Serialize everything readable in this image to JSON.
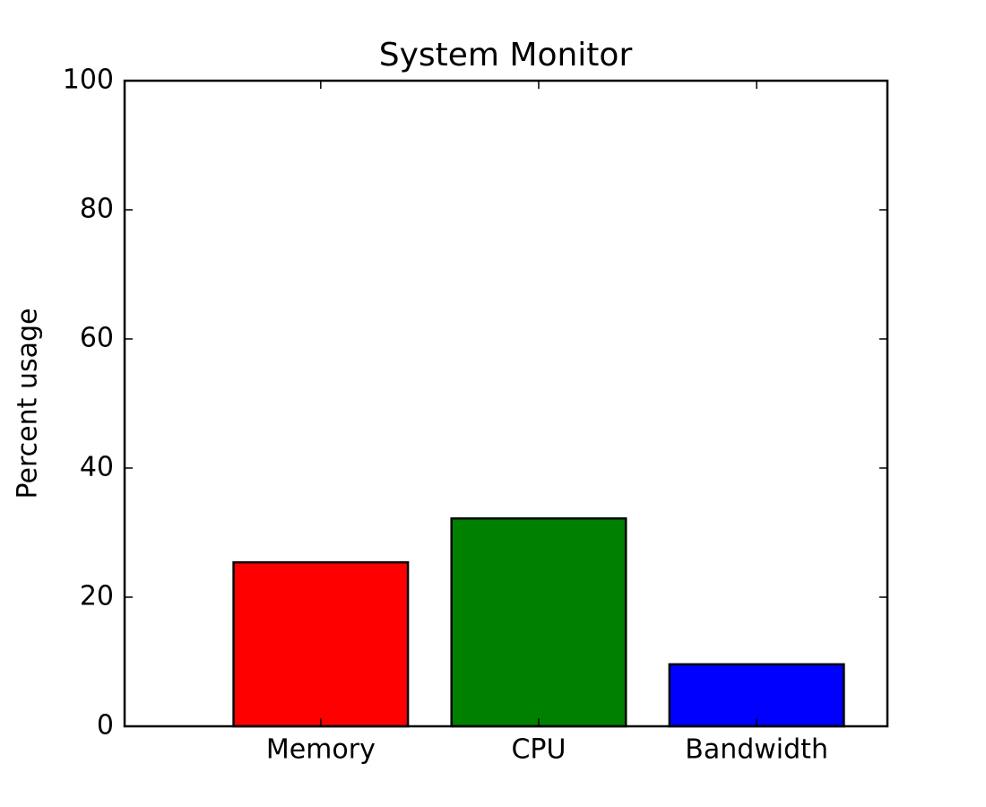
{
  "chart_data": {
    "type": "bar",
    "title": "System Monitor",
    "y_label": "Percent usage",
    "categories": [
      "Memory",
      "CPU",
      "Bandwidth"
    ],
    "values": [
      25.4,
      32.2,
      9.6
    ],
    "colors": [
      "#ff0000",
      "#008000",
      "#0000ff"
    ],
    "ylim": [
      0,
      100
    ],
    "yticks": [
      0,
      20,
      40,
      60,
      80,
      100
    ],
    "grid": false
  }
}
